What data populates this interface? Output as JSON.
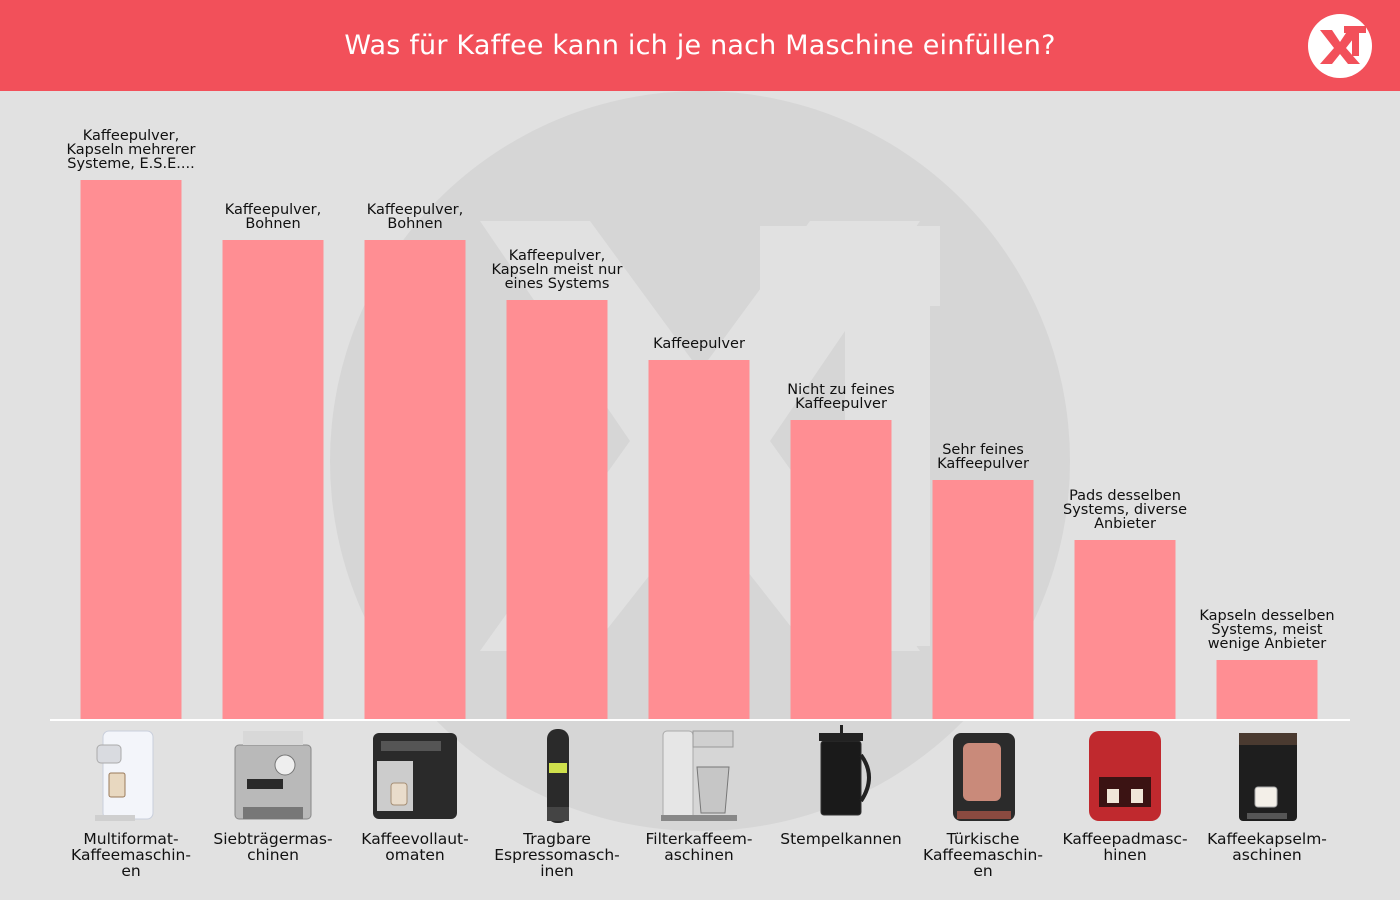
{
  "header": {
    "title": "Was für Kaffee kann ich je nach Maschine einfüllen?",
    "logo_text": "XT",
    "background": "#f2505a",
    "text_color": "#ffffff"
  },
  "colors": {
    "bar": "#ff8e93",
    "background": "#e1e1e1",
    "baseline": "#ffffff",
    "watermark": "#d5d5d5"
  },
  "chart_data": {
    "type": "bar",
    "title": "Was für Kaffee kann ich je nach Maschine einfüllen?",
    "xlabel": "",
    "ylabel": "",
    "grid": false,
    "categories": [
      "Multiformat-Kaffeemaschinen",
      "Siebträgermaschinen",
      "Kaffeevollautomaten",
      "Tragbare Espressomaschinen",
      "Filterkaffeemaschinen",
      "Stempelkannen",
      "Türkische Kaffeemaschinen",
      "Kaffeepadmaschinen",
      "Kaffeekapselmaschinen"
    ],
    "category_label_lines": [
      [
        "Multiformat-",
        "Kaffeemaschin-",
        "en"
      ],
      [
        "Siebträgermas-",
        "chinen"
      ],
      [
        "Kaffeevollaut-",
        "omaten"
      ],
      [
        "Tragbare",
        "Espressomasch-",
        "inen"
      ],
      [
        "Filterkaffeem-",
        "aschinen"
      ],
      [
        "Stempelkannen"
      ],
      [
        "Türkische",
        "Kaffeemaschin-",
        "en"
      ],
      [
        "Kaffeepadmasc-",
        "hinen"
      ],
      [
        "Kaffeekapselm-",
        "aschinen"
      ]
    ],
    "values": [
      9,
      8,
      8,
      7,
      6,
      5,
      4,
      3,
      1
    ],
    "ylim": [
      0,
      9
    ],
    "data_labels": [
      [
        "Kaffeepulver,",
        "Kapseln mehrerer",
        "Systeme, E.S.E...."
      ],
      [
        "Kaffeepulver,",
        "Bohnen"
      ],
      [
        "Kaffeepulver,",
        "Bohnen"
      ],
      [
        "Kaffeepulver,",
        "Kapseln meist nur",
        "eines Systems"
      ],
      [
        "Kaffeepulver"
      ],
      [
        "Nicht zu feines",
        "Kaffeepulver"
      ],
      [
        "Sehr feines",
        "Kaffeepulver"
      ],
      [
        "Pads desselben",
        "Systems, diverse",
        "Anbieter"
      ],
      [
        "Kapseln desselben",
        "Systems, meist",
        "wenige Anbieter"
      ]
    ],
    "product_icons": [
      "multiformat-machine-icon",
      "portafilter-machine-icon",
      "fully-automatic-machine-icon",
      "portable-espresso-icon",
      "filter-coffee-machine-icon",
      "french-press-icon",
      "turkish-coffee-machine-icon",
      "pad-machine-icon",
      "capsule-machine-icon"
    ]
  }
}
